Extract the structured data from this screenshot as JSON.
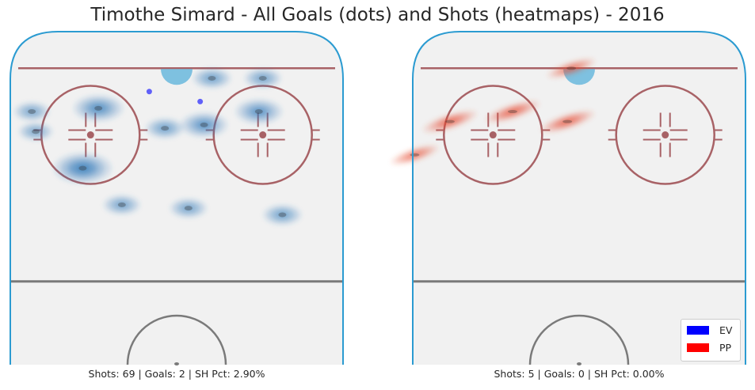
{
  "title": "Timothe Simard - All Goals (dots) and Shots (heatmaps) - 2016",
  "colors": {
    "board": "#2b9bd1",
    "ice": "#f1f1f1",
    "red_line": "#a86266",
    "grey_line": "#7a7a7a",
    "crease": "#7ec1e0",
    "ev": "#0000ff",
    "pp": "#ff0000",
    "ev_heat": "#2f78b8",
    "pp_heat": "#e8482f"
  },
  "legend": {
    "items": [
      {
        "label": "EV",
        "color": "#0000ff"
      },
      {
        "label": "PP",
        "color": "#ff0000"
      }
    ]
  },
  "chart_data": [
    {
      "type": "heatmap",
      "panel": "left",
      "situation": "EV",
      "caption": "Shots: 69 | Goals: 2 | SH Pct: 2.90%",
      "shots": 69,
      "goals": 2,
      "sh_pct": "2.90%",
      "goal_dots": [
        {
          "x": -7,
          "y": 82
        },
        {
          "x": 6,
          "y": 79
        }
      ],
      "hotspots": [
        {
          "x": -24,
          "y": 59,
          "intensity": 1.0
        },
        {
          "x": -20,
          "y": 77,
          "intensity": 0.7
        },
        {
          "x": 7,
          "y": 72,
          "intensity": 0.6
        },
        {
          "x": 21,
          "y": 76,
          "intensity": 0.6
        },
        {
          "x": 27,
          "y": 45,
          "intensity": 0.3
        },
        {
          "x": 3,
          "y": 47,
          "intensity": 0.25
        },
        {
          "x": -14,
          "y": 48,
          "intensity": 0.25
        },
        {
          "x": -37,
          "y": 76,
          "intensity": 0.2
        },
        {
          "x": 9,
          "y": 86,
          "intensity": 0.3
        },
        {
          "x": -36,
          "y": 70,
          "intensity": 0.15
        },
        {
          "x": -3,
          "y": 71,
          "intensity": 0.3
        },
        {
          "x": 22,
          "y": 86,
          "intensity": 0.25
        }
      ]
    },
    {
      "type": "heatmap",
      "panel": "right",
      "situation": "PP",
      "caption": "Shots: 5 | Goals: 0 | SH Pct: 0.00%",
      "shots": 5,
      "goals": 0,
      "sh_pct": "0.00%",
      "goal_dots": [],
      "hotspots": [
        {
          "x": -33,
          "y": 73,
          "intensity": 0.7
        },
        {
          "x": -17,
          "y": 76,
          "intensity": 0.7
        },
        {
          "x": -3,
          "y": 73,
          "intensity": 0.7
        },
        {
          "x": -42,
          "y": 63,
          "intensity": 0.5
        },
        {
          "x": -2,
          "y": 89,
          "intensity": 0.5
        }
      ]
    }
  ]
}
